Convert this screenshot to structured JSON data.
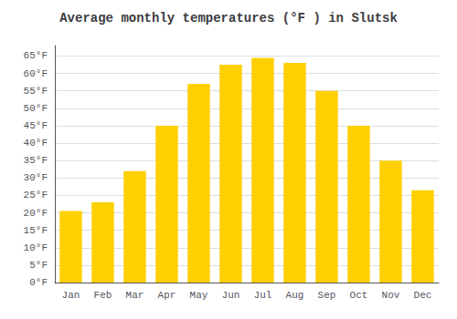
{
  "chart_data": {
    "type": "bar",
    "title": "Average monthly temperatures (°F ) in Slutsk",
    "categories": [
      "Jan",
      "Feb",
      "Mar",
      "Apr",
      "May",
      "Jun",
      "Jul",
      "Aug",
      "Sep",
      "Oct",
      "Nov",
      "Dec"
    ],
    "values": [
      20.5,
      23.0,
      32.0,
      45.0,
      57.0,
      62.5,
      64.5,
      63.0,
      55.0,
      45.0,
      35.0,
      26.5
    ],
    "color": "#FFD000",
    "ylim": [
      0,
      68
    ],
    "yticks": [
      {
        "value": 0,
        "label": "0°F"
      },
      {
        "value": 5,
        "label": "5°F"
      },
      {
        "value": 10,
        "label": "10°F"
      },
      {
        "value": 15,
        "label": "15°F"
      },
      {
        "value": 20,
        "label": "20°F"
      },
      {
        "value": 25,
        "label": "25°F"
      },
      {
        "value": 30,
        "label": "30°F"
      },
      {
        "value": 35,
        "label": "35°F"
      },
      {
        "value": 40,
        "label": "40°F"
      },
      {
        "value": 45,
        "label": "45°F"
      },
      {
        "value": 50,
        "label": "50°F"
      },
      {
        "value": 55,
        "label": "55°F"
      },
      {
        "value": 60,
        "label": "60°F"
      },
      {
        "value": 65,
        "label": "65°F"
      }
    ],
    "grid": true
  }
}
